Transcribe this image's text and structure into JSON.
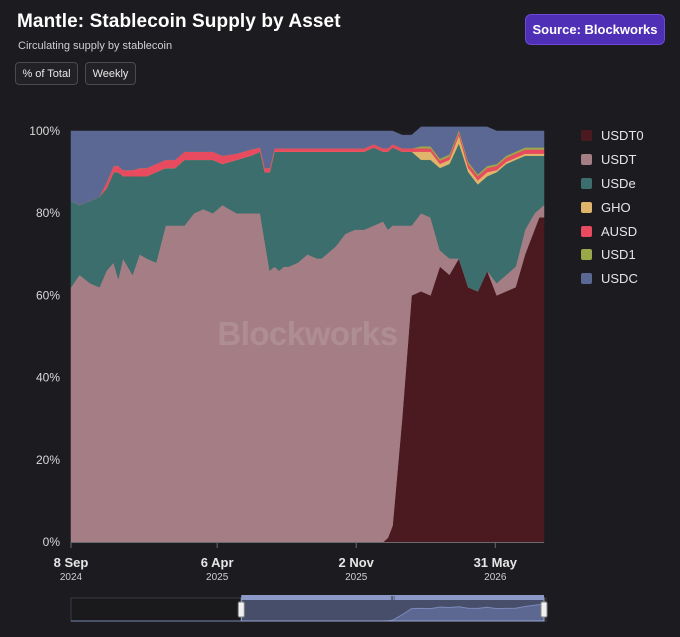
{
  "header": {
    "title": "Mantle: Stablecoin Supply by Asset",
    "subtitle": "Circulating supply by stablecoin",
    "source_button": "Source: Blockworks"
  },
  "controls": {
    "percent_toggle": "% of Total",
    "interval_toggle": "Weekly"
  },
  "watermark": "Blockworks",
  "navigator": {
    "handle_glyph": "III",
    "selected_range": [
      0.36,
      1.0
    ]
  },
  "chart_data": {
    "type": "area",
    "stacked": "percent",
    "y_ticks": [
      "0%",
      "20%",
      "40%",
      "60%",
      "80%",
      "100%"
    ],
    "ylim": [
      0,
      100
    ],
    "x_ticks": [
      {
        "label": "8 Sep",
        "sublabel": "2024",
        "t": 0.0
      },
      {
        "label": "6 Apr",
        "sublabel": "2025",
        "t": 0.309
      },
      {
        "label": "2 Nov",
        "sublabel": "2025",
        "t": 0.603
      },
      {
        "label": "31 May",
        "sublabel": "2026",
        "t": 0.897
      }
    ],
    "x": [
      0,
      0.018,
      0.04,
      0.06,
      0.075,
      0.09,
      0.1,
      0.11,
      0.13,
      0.145,
      0.16,
      0.18,
      0.2,
      0.22,
      0.24,
      0.26,
      0.28,
      0.3,
      0.32,
      0.35,
      0.38,
      0.4,
      0.41,
      0.42,
      0.43,
      0.44,
      0.45,
      0.46,
      0.48,
      0.5,
      0.52,
      0.53,
      0.54,
      0.56,
      0.58,
      0.6,
      0.62,
      0.64,
      0.66,
      0.67,
      0.68,
      0.7,
      0.72,
      0.74,
      0.76,
      0.78,
      0.8,
      0.82,
      0.84,
      0.86,
      0.88,
      0.9,
      0.92,
      0.94,
      0.96,
      0.98,
      0.99,
      1.0
    ],
    "series": [
      {
        "name": "USDT0",
        "color": "#4b1a21",
        "values": [
          0,
          0,
          0,
          0,
          0,
          0,
          0,
          0,
          0,
          0,
          0,
          0,
          0,
          0,
          0,
          0,
          0,
          0,
          0,
          0,
          0,
          0,
          0,
          0,
          0,
          0,
          0,
          0,
          0,
          0,
          0,
          0,
          0,
          0,
          0,
          0,
          0,
          0,
          0,
          1,
          4,
          30,
          60,
          61,
          60,
          67,
          65,
          69,
          62,
          61,
          66,
          60,
          61,
          62,
          70,
          76,
          79,
          79
        ]
      },
      {
        "name": "USDT",
        "color": "#a47e84",
        "values": [
          62,
          65,
          63,
          62,
          66,
          68,
          64,
          69,
          65,
          70,
          69,
          68,
          77,
          77,
          77,
          80,
          81,
          80,
          82,
          80,
          80,
          80,
          73,
          66,
          67,
          66,
          67,
          67,
          68,
          70,
          69,
          69,
          70,
          72,
          75,
          76,
          76,
          77,
          78,
          75,
          73,
          47,
          17,
          19,
          19,
          4,
          4,
          0,
          0,
          0,
          0,
          3,
          4,
          5,
          6,
          4,
          2,
          3
        ]
      },
      {
        "name": "USDe",
        "color": "#3b6e6c",
        "values": [
          21,
          17,
          20,
          22,
          20,
          22,
          26,
          20,
          24,
          19,
          20,
          22,
          14,
          14,
          16,
          13,
          12,
          13,
          10,
          13,
          14,
          15,
          17,
          24,
          28,
          29,
          28,
          28,
          27,
          25,
          26,
          26,
          25,
          23,
          20,
          19,
          19,
          19,
          17,
          19,
          19,
          18,
          18,
          13,
          14,
          20,
          23,
          28,
          28,
          26,
          23,
          27,
          27,
          26,
          18,
          14,
          13,
          12
        ]
      },
      {
        "name": "GHO",
        "color": "#e0b46a",
        "values": [
          0,
          0,
          0,
          0,
          0,
          0,
          0,
          0,
          0,
          0,
          0,
          0,
          0,
          0,
          0,
          0,
          0,
          0,
          0,
          0,
          0,
          0,
          0,
          0,
          0,
          0,
          0,
          0,
          0,
          0,
          0,
          0,
          0,
          0,
          0,
          0,
          0,
          0,
          0,
          0,
          0,
          0,
          0,
          2,
          2,
          1,
          1,
          2,
          1,
          1,
          1,
          0.5,
          0.5,
          0.5,
          0.5,
          0.5,
          0.5,
          0.5
        ]
      },
      {
        "name": "AUSD",
        "color": "#e84a5f",
        "values": [
          0,
          0,
          0,
          0,
          1.5,
          1.5,
          1.5,
          1.5,
          1.5,
          2,
          2,
          2,
          2,
          2,
          2,
          2,
          2,
          2,
          2,
          1.5,
          1.5,
          1,
          1,
          1,
          0.8,
          0.8,
          0.8,
          0.8,
          0.8,
          0.8,
          0.8,
          0.8,
          0.8,
          0.8,
          0.8,
          0.8,
          0.8,
          0.8,
          0.8,
          0.8,
          0.8,
          0.8,
          0.8,
          0.8,
          0.8,
          0.8,
          0.8,
          0.8,
          1,
          1,
          1,
          1,
          1,
          1,
          1,
          1,
          1,
          1
        ]
      },
      {
        "name": "USD1",
        "color": "#9aa84a",
        "values": [
          0,
          0,
          0,
          0,
          0,
          0,
          0,
          0,
          0,
          0,
          0,
          0,
          0,
          0,
          0,
          0,
          0,
          0,
          0,
          0,
          0,
          0,
          0,
          0,
          0,
          0,
          0,
          0,
          0,
          0,
          0,
          0,
          0,
          0,
          0,
          0,
          0,
          0,
          0,
          0,
          0,
          0,
          0,
          0.5,
          0.5,
          0.5,
          0.5,
          0.5,
          0.5,
          0.5,
          0.5,
          0.5,
          0.5,
          0.5,
          0.5,
          0.5,
          0.5,
          0.5
        ]
      },
      {
        "name": "USDC",
        "color": "#5c6894",
        "values": [
          17,
          18,
          17,
          16,
          12.5,
          8.5,
          8.5,
          9.5,
          9.5,
          9,
          9,
          8,
          7,
          7,
          5,
          5,
          5,
          5,
          6,
          5.5,
          4.5,
          4,
          9,
          9,
          4.2,
          4.2,
          4.2,
          4.2,
          4.2,
          4.2,
          4.2,
          4.2,
          4.2,
          4.2,
          4.2,
          4.2,
          4.2,
          3.2,
          4.2,
          4.2,
          3.2,
          3.2,
          3.2,
          4.7,
          4.7,
          7.7,
          6.7,
          0.7,
          8.5,
          11.5,
          9.5,
          8,
          6,
          5,
          4,
          4,
          4,
          4
        ]
      }
    ]
  }
}
